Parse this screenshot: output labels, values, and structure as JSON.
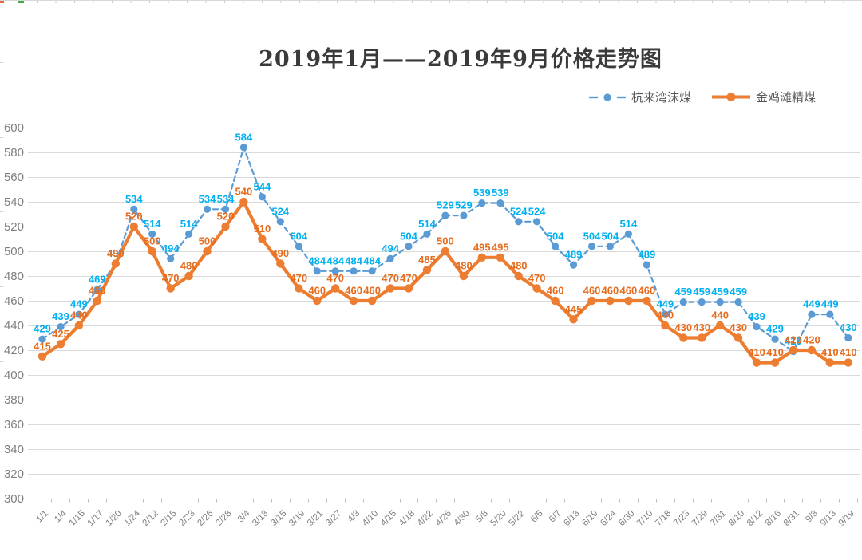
{
  "window": {
    "title": "2019年1月——2019年9月价格走势图"
  },
  "legend": {
    "items": [
      {
        "label": "杭来湾沫煤",
        "marker": "dashed-line-with-dot"
      },
      {
        "label": "金鸡滩精煤",
        "marker": "solid-line-with-dot"
      }
    ]
  },
  "chart_data": {
    "type": "line",
    "title": "2019年1月——2019年9月价格走势图",
    "categories": [
      "1/1",
      "1/4",
      "1/15",
      "1/17",
      "1/20",
      "1/24",
      "2/12",
      "2/15",
      "2/23",
      "2/26",
      "2/28",
      "3/4",
      "3/13",
      "3/15",
      "3/19",
      "3/21",
      "3/27",
      "4/3",
      "4/10",
      "4/15",
      "4/18",
      "4/22",
      "4/26",
      "4/30",
      "5/8",
      "5/20",
      "5/22",
      "6/5",
      "6/7",
      "6/13",
      "6/19",
      "6/24",
      "6/30",
      "7/10",
      "7/18",
      "7/23",
      "7/29",
      "7/31",
      "8/10",
      "8/12",
      "8/16",
      "8/31",
      "9/3",
      "9/13",
      "9/19"
    ],
    "series": [
      {
        "name": "杭来湾沫煤",
        "values": [
          429,
          439,
          449,
          469,
          490,
          534,
          514,
          494,
          514,
          534,
          534,
          584,
          544,
          524,
          504,
          484,
          484,
          484,
          484,
          494,
          504,
          514,
          529,
          529,
          539,
          539,
          524,
          524,
          504,
          489,
          504,
          504,
          514,
          489,
          449,
          459,
          459,
          459,
          459,
          439,
          429,
          419,
          449,
          449,
          430
        ],
        "line_color": "#5B9BD5",
        "label_color": "#00B0F0",
        "line_style": "dashed"
      },
      {
        "name": "金鸡滩精煤",
        "values": [
          415,
          425,
          440,
          460,
          490,
          520,
          500,
          470,
          480,
          500,
          520,
          540,
          510,
          490,
          470,
          460,
          470,
          460,
          460,
          470,
          470,
          485,
          500,
          480,
          495,
          495,
          480,
          470,
          460,
          445,
          460,
          460,
          460,
          460,
          440,
          430,
          430,
          440,
          430,
          410,
          410,
          420,
          420,
          410,
          410
        ],
        "line_color": "#ED7D31",
        "label_color": "#E66C1E",
        "line_style": "solid"
      }
    ],
    "ylim": [
      300,
      600
    ],
    "ytick_step": 20,
    "yticks": [
      300,
      320,
      340,
      360,
      380,
      400,
      420,
      440,
      460,
      480,
      500,
      520,
      540,
      560,
      580,
      600
    ],
    "grid": true,
    "show_data_labels": true,
    "legend_position": "top-right",
    "axis_text_color": "#7f7f7f",
    "gridline_color": "#dadada"
  }
}
